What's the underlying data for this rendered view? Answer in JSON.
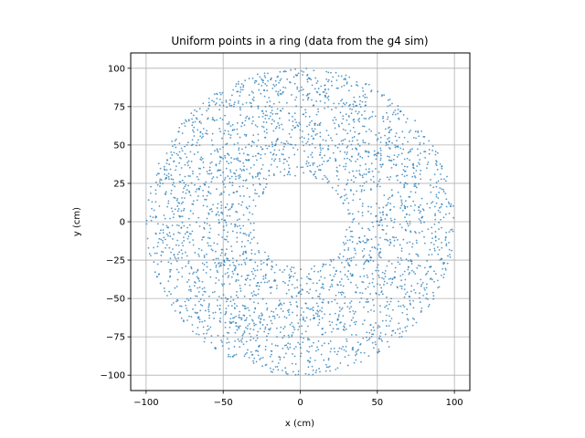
{
  "chart_data": {
    "type": "scatter",
    "title": "Uniform points in a ring (data from the g4 sim)",
    "xlabel": "x (cm)",
    "ylabel": "y (cm)",
    "xlim": [
      -110,
      110
    ],
    "ylim": [
      -110,
      110
    ],
    "xticks": [
      -100,
      -50,
      0,
      50,
      100
    ],
    "yticks": [
      -100,
      -75,
      -50,
      -25,
      0,
      25,
      50,
      75,
      100
    ],
    "xtick_labels": [
      "−100",
      "−50",
      "0",
      "50",
      "100"
    ],
    "ytick_labels": [
      "−100",
      "−75",
      "−50",
      "−25",
      "0",
      "25",
      "50",
      "75",
      "100"
    ],
    "grid": true,
    "point_color": "#1f77b4",
    "series": [
      {
        "distribution": "uniform in annulus",
        "inner_radius": 30,
        "outer_radius": 100,
        "count": 3000
      }
    ]
  }
}
